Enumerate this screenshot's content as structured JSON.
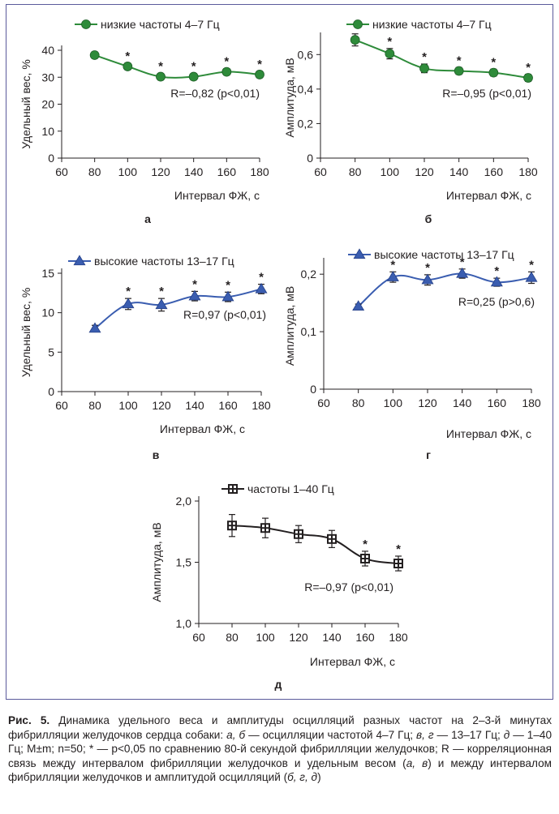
{
  "charts": [
    {
      "id": "a",
      "type": "line",
      "panel_letter": "а",
      "legend": "низкие частоты 4–7 Гц",
      "ylabel": "Удельный вес, %",
      "xlabel": "Интервал ФЖ, с",
      "stat_text": "R=–0,82 (p<0,01)",
      "x_ticks": [
        "60",
        "80",
        "100",
        "120",
        "140",
        "160",
        "180"
      ],
      "y_ticks": [
        "0",
        "10",
        "20",
        "30",
        "40"
      ],
      "xlim": [
        60,
        180
      ],
      "ylim": [
        0,
        40
      ],
      "marker": "circle",
      "color": "#2e8b3a",
      "x": [
        80,
        100,
        120,
        140,
        160,
        180
      ],
      "y": [
        38.2,
        34.0,
        30.2,
        30.2,
        32.0,
        31.0
      ],
      "err": [
        1.2,
        1.2,
        1.2,
        1.2,
        1.2,
        1.2
      ],
      "stars": [
        false,
        true,
        true,
        true,
        true,
        true
      ]
    },
    {
      "id": "b",
      "type": "line",
      "panel_letter": "б",
      "legend": "низкие частоты 4–7 Гц",
      "ylabel": "Амплитуда, мВ",
      "xlabel": "Интервал ФЖ, с",
      "stat_text": "R=–0,95 (p<0,01)",
      "x_ticks": [
        "60",
        "80",
        "100",
        "120",
        "140",
        "160",
        "180"
      ],
      "y_ticks": [
        "0",
        "0,2",
        "0,4",
        "0,6"
      ],
      "xlim": [
        60,
        180
      ],
      "ylim": [
        0,
        0.7
      ],
      "marker": "circle",
      "color": "#2e8b3a",
      "x": [
        80,
        100,
        120,
        140,
        160,
        180
      ],
      "y": [
        0.685,
        0.605,
        0.52,
        0.505,
        0.495,
        0.465
      ],
      "err": [
        0.035,
        0.03,
        0.025,
        0.02,
        0.02,
        0.02
      ],
      "stars": [
        false,
        true,
        true,
        true,
        true,
        true
      ]
    },
    {
      "id": "v",
      "type": "line",
      "panel_letter": "в",
      "legend": "высокие частоты 13–17 Гц",
      "ylabel": "Удельный вес, %",
      "xlabel": "Интервал ФЖ, с",
      "stat_text": "R=0,97 (p<0,01)",
      "x_ticks": [
        "60",
        "80",
        "100",
        "120",
        "140",
        "160",
        "180"
      ],
      "y_ticks": [
        "0",
        "5",
        "10",
        "15"
      ],
      "xlim": [
        60,
        180
      ],
      "ylim": [
        0,
        15
      ],
      "marker": "triangle",
      "color": "#3a5db0",
      "x": [
        80,
        100,
        120,
        140,
        160,
        180
      ],
      "y": [
        8.0,
        11.1,
        11.0,
        12.1,
        12.0,
        13.0
      ],
      "err": [
        0.4,
        0.7,
        0.8,
        0.6,
        0.6,
        0.6
      ],
      "stars": [
        false,
        true,
        true,
        true,
        true,
        true
      ]
    },
    {
      "id": "g",
      "type": "line",
      "panel_letter": "г",
      "legend": "высокие частоты 13–17 Гц",
      "ylabel": "Амплитуда, мВ",
      "xlabel": "Интервал ФЖ, с",
      "stat_text": "R=0,25 (p>0,6)",
      "x_ticks": [
        "60",
        "80",
        "100",
        "120",
        "140",
        "160",
        "180"
      ],
      "y_ticks": [
        "0",
        "0,1",
        "0,2"
      ],
      "xlim": [
        60,
        180
      ],
      "ylim": [
        0,
        0.22
      ],
      "marker": "triangle",
      "color": "#3a5db0",
      "x": [
        80,
        100,
        120,
        140,
        160,
        180
      ],
      "y": [
        0.144,
        0.195,
        0.19,
        0.201,
        0.186,
        0.194
      ],
      "err": [
        0.004,
        0.009,
        0.009,
        0.008,
        0.007,
        0.01
      ],
      "stars": [
        false,
        true,
        true,
        true,
        true,
        true
      ]
    },
    {
      "id": "d",
      "type": "line",
      "panel_letter": "д",
      "legend": "частоты 1–40 Гц",
      "ylabel": "Амплитуда, мВ",
      "xlabel": "Интервал ФЖ, с",
      "stat_text": "R=–0,97 (p<0,01)",
      "x_ticks": [
        "60",
        "80",
        "100",
        "120",
        "140",
        "160",
        "180"
      ],
      "y_ticks": [
        "1,0",
        "1,5",
        "2,0"
      ],
      "xlim": [
        60,
        180
      ],
      "ylim": [
        1.0,
        2.0
      ],
      "marker": "square-cross",
      "color": "#231f20",
      "x": [
        80,
        100,
        120,
        140,
        160,
        180
      ],
      "y": [
        1.8,
        1.78,
        1.73,
        1.69,
        1.53,
        1.49
      ],
      "err": [
        0.09,
        0.08,
        0.07,
        0.07,
        0.06,
        0.06
      ],
      "stars": [
        false,
        false,
        false,
        false,
        true,
        true
      ]
    }
  ],
  "caption": {
    "label": "Рис. 5.",
    "text_1": " Динамика удельного веса и амплитуды осцилляций разных частот на 2–3-й минутах фибрилляции желудочков сердца собаки: ",
    "a_b": "а, б",
    "text_2": " — осцилляции частотой 4–7 Гц; ",
    "v_g": "в, г",
    "text_3": " — 13–17 Гц; ",
    "d": "д",
    "text_4": " — 1–40 Гц; M±m; n=50; * — p<0,05 по сравнению 80-й секундой фибрилляции желудочков; R — корреляционная связь между интервалом фибрилляции желудочков и удельным весом (",
    "a_v": "а, в",
    "text_5": ") и между интервалом фибрилляции желудочков и амплитудой осцилляций (",
    "b_g_d": "б, г, д",
    "text_6": ")"
  }
}
